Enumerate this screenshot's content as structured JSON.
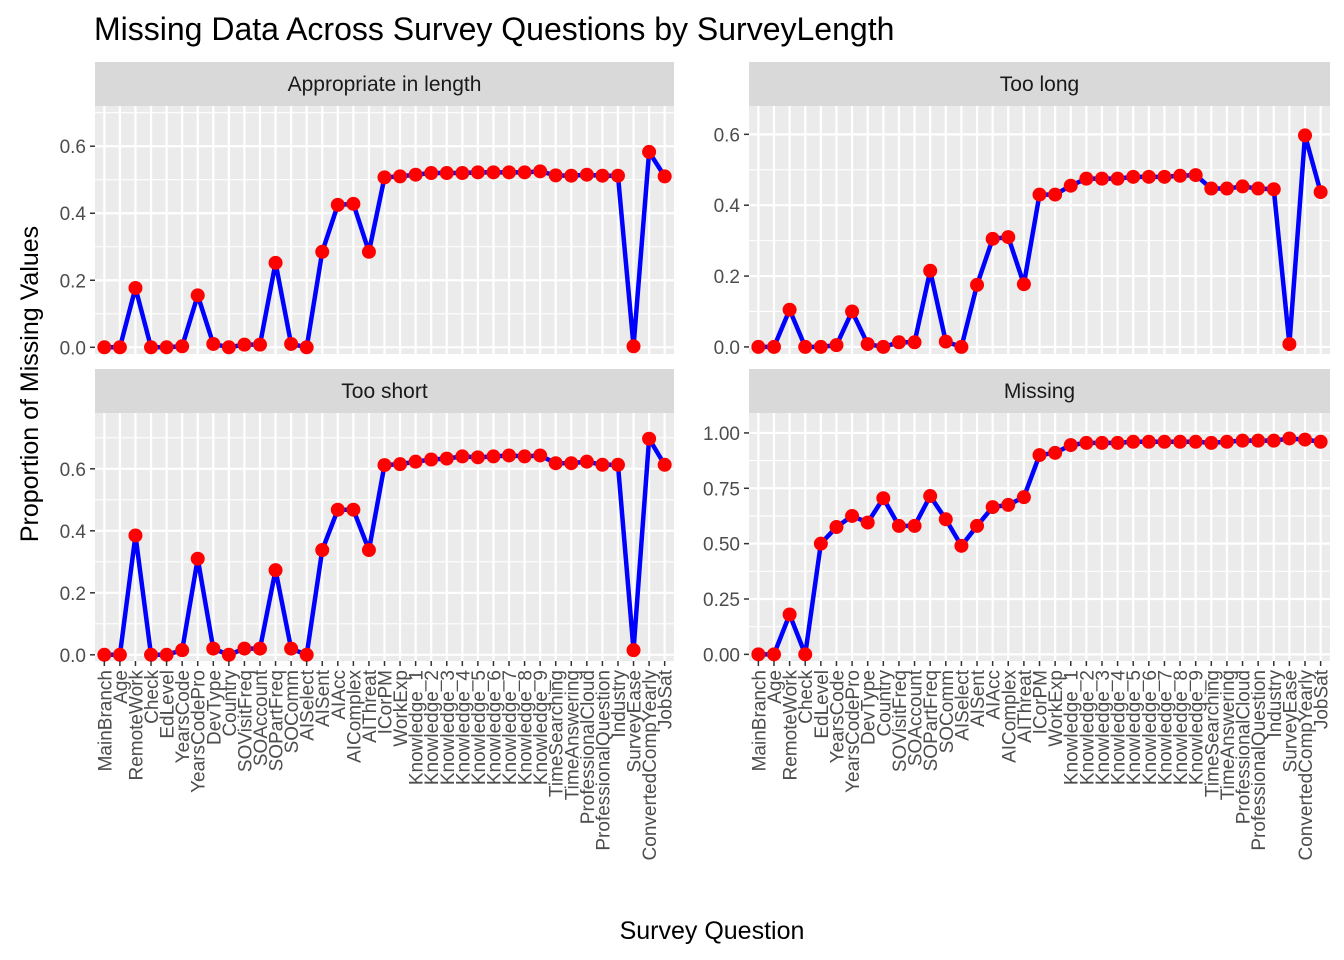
{
  "chart_data": {
    "type": "line",
    "title": "Missing Data Across Survey Questions by SurveyLength",
    "xlabel": "Survey Question",
    "ylabel": "Proportion of Missing Values",
    "grid": true,
    "legend": "none",
    "colors": {
      "line": "#0000FF",
      "point": "#FF0000",
      "panel_bg": "#EBEBEB",
      "strip_bg": "#D9D9D9",
      "grid": "#FFFFFF"
    },
    "categories": [
      "MainBranch",
      "Age",
      "RemoteWork",
      "Check",
      "EdLevel",
      "YearsCode",
      "YearsCodePro",
      "DevType",
      "Country",
      "SOVisitFreq",
      "SOAccount",
      "SOPartFreq",
      "SOComm",
      "AISelect",
      "AISent",
      "AIAcc",
      "AIComplex",
      "AIThreat",
      "ICorPM",
      "WorkExp",
      "Knowledge_1",
      "Knowledge_2",
      "Knowledge_3",
      "Knowledge_4",
      "Knowledge_5",
      "Knowledge_6",
      "Knowledge_7",
      "Knowledge_8",
      "Knowledge_9",
      "TimeSearching",
      "TimeAnswering",
      "ProfessionalCloud",
      "ProfessionalQuestion",
      "Industry",
      "SurveyEase",
      "ConvertedCompYearly",
      "JobSat"
    ],
    "panels": [
      {
        "name": "Appropriate in length",
        "ylim": [
          -0.02,
          0.72
        ],
        "yticks": [
          0.0,
          0.2,
          0.4,
          0.6
        ],
        "ytick_labels": [
          "0.0",
          "0.2",
          "0.4",
          "0.6"
        ],
        "values": [
          0.0,
          0.0,
          0.177,
          0.0,
          0.0,
          0.003,
          0.155,
          0.01,
          0.0,
          0.008,
          0.008,
          0.252,
          0.01,
          0.0,
          0.285,
          0.425,
          0.428,
          0.285,
          0.507,
          0.51,
          0.515,
          0.52,
          0.52,
          0.52,
          0.522,
          0.522,
          0.522,
          0.522,
          0.525,
          0.513,
          0.512,
          0.515,
          0.512,
          0.512,
          0.003,
          0.583,
          0.51
        ]
      },
      {
        "name": "Too long",
        "ylim": [
          -0.02,
          0.68
        ],
        "yticks": [
          0.0,
          0.2,
          0.4,
          0.6
        ],
        "ytick_labels": [
          "0.0",
          "0.2",
          "0.4",
          "0.6"
        ],
        "values": [
          0.0,
          0.0,
          0.105,
          0.0,
          0.0,
          0.005,
          0.1,
          0.008,
          0.0,
          0.013,
          0.013,
          0.215,
          0.015,
          0.0,
          0.175,
          0.305,
          0.31,
          0.177,
          0.43,
          0.43,
          0.455,
          0.475,
          0.475,
          0.475,
          0.48,
          0.48,
          0.48,
          0.483,
          0.485,
          0.447,
          0.447,
          0.453,
          0.447,
          0.445,
          0.008,
          0.597,
          0.437
        ]
      },
      {
        "name": "Too short",
        "ylim": [
          -0.02,
          0.78
        ],
        "yticks": [
          0.0,
          0.2,
          0.4,
          0.6
        ],
        "ytick_labels": [
          "0.0",
          "0.2",
          "0.4",
          "0.6"
        ],
        "values": [
          0.0,
          0.0,
          0.385,
          0.0,
          0.0,
          0.015,
          0.31,
          0.02,
          0.0,
          0.02,
          0.02,
          0.273,
          0.02,
          0.0,
          0.338,
          0.468,
          0.468,
          0.338,
          0.612,
          0.615,
          0.623,
          0.63,
          0.633,
          0.64,
          0.637,
          0.64,
          0.643,
          0.64,
          0.643,
          0.618,
          0.618,
          0.623,
          0.613,
          0.613,
          0.015,
          0.697,
          0.613
        ]
      },
      {
        "name": "Missing",
        "ylim": [
          -0.03,
          1.09
        ],
        "yticks": [
          0.0,
          0.25,
          0.5,
          0.75,
          1.0
        ],
        "ytick_labels": [
          "0.00",
          "0.25",
          "0.50",
          "0.75",
          "1.00"
        ],
        "values": [
          0.0,
          0.0,
          0.18,
          0.0,
          0.5,
          0.575,
          0.625,
          0.595,
          0.705,
          0.58,
          0.58,
          0.715,
          0.61,
          0.49,
          0.58,
          0.665,
          0.675,
          0.71,
          0.9,
          0.91,
          0.945,
          0.955,
          0.955,
          0.955,
          0.96,
          0.96,
          0.96,
          0.96,
          0.96,
          0.955,
          0.96,
          0.965,
          0.965,
          0.965,
          0.975,
          0.97,
          0.96
        ]
      }
    ]
  }
}
